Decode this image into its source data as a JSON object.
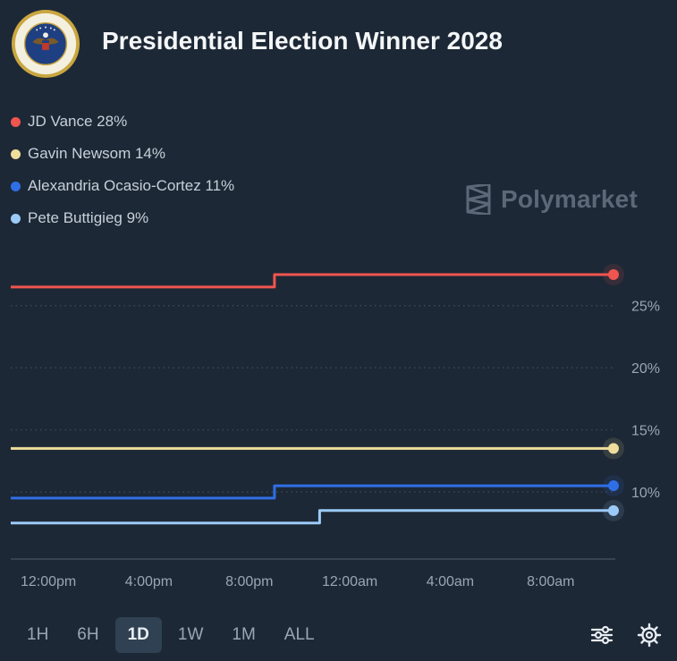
{
  "title": "Presidential Election Winner 2028",
  "seal": {
    "icon": "presidential-seal-icon",
    "text": "SEAL OF THE PRESIDENT OF THE UNITED STATES"
  },
  "brand": {
    "name": "Polymarket",
    "icon": "polymarket-logo-icon"
  },
  "chart_data": {
    "type": "line",
    "title": "Presidential Election Winner 2028",
    "xlabel": "",
    "ylabel": "",
    "ylim": [
      5,
      29
    ],
    "y_ticks": [
      25,
      20,
      15,
      10
    ],
    "y_tick_labels": [
      "25%",
      "20%",
      "15%",
      "10%"
    ],
    "x_ticks": [
      0,
      4,
      8,
      12,
      16,
      20
    ],
    "x_tick_labels": [
      "12:00pm",
      "4:00pm",
      "8:00pm",
      "12:00am",
      "4:00am",
      "8:00am"
    ],
    "x_range": [
      -1.5,
      22.5
    ],
    "grid": "horizontal dotted",
    "legend_position": "top-left",
    "series": [
      {
        "name": "JD Vance",
        "label": "JD Vance 28%",
        "color": "#f0554f",
        "points": [
          [
            -1.5,
            26.5
          ],
          [
            9.0,
            26.5
          ],
          [
            9.0,
            27.5
          ],
          [
            22.5,
            27.5
          ]
        ]
      },
      {
        "name": "Gavin Newsom",
        "label": "Gavin Newsom 14%",
        "color": "#efdd9b",
        "points": [
          [
            -1.5,
            13.5
          ],
          [
            22.5,
            13.5
          ]
        ]
      },
      {
        "name": "Alexandria Ocasio-Cortez",
        "label": "Alexandria Ocasio-Cortez 11%",
        "color": "#2f6fe6",
        "points": [
          [
            -1.5,
            9.5
          ],
          [
            9.0,
            9.5
          ],
          [
            9.0,
            10.5
          ],
          [
            22.5,
            10.5
          ]
        ]
      },
      {
        "name": "Pete Buttigieg",
        "label": "Pete Buttigieg 9%",
        "color": "#9ccaf7",
        "points": [
          [
            -1.5,
            7.5
          ],
          [
            10.8,
            7.5
          ],
          [
            10.8,
            8.5
          ],
          [
            22.5,
            8.5
          ]
        ]
      }
    ]
  },
  "toolbar": {
    "ranges": [
      "1H",
      "6H",
      "1D",
      "1W",
      "1M",
      "ALL"
    ],
    "active_range": "1D",
    "filter_icon": "sliders-icon",
    "settings_icon": "gear-icon"
  }
}
